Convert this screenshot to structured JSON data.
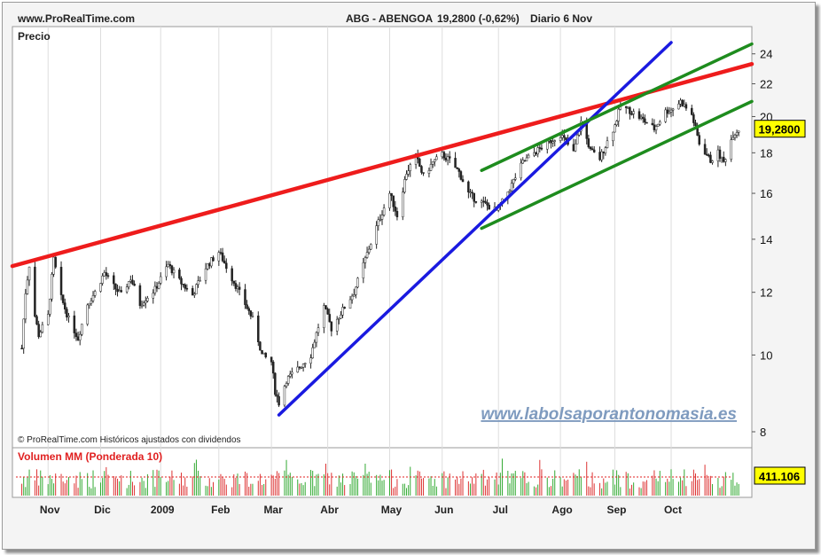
{
  "header": {
    "site": "www.ProRealTime.com",
    "ticker": "ABG - ABENGOA",
    "quote": "19,2800 (-0,62%)",
    "period": "Diario  6 Nov"
  },
  "price_panel": {
    "title": "Precio",
    "copyright": "© ProRealTime.com  Históricos ajustados con dividendos",
    "watermark": "www.labolsaporantonomasia.es",
    "last_price_label": "19,2800"
  },
  "volume_panel": {
    "title": "Volumen MM (Ponderada 10)",
    "last_volume_label": "411.106"
  },
  "colors": {
    "background": "#ffffff",
    "frame": "#f4f4f4",
    "resistance": "#ee1c1c",
    "support": "#1a1ae0",
    "channel": "#1e8c1e",
    "candles": "#222222",
    "volume_up": "#33aa33",
    "volume_down": "#dd3333",
    "price_badge": "#ffff00",
    "watermark": "#7f9bbf"
  },
  "chart_data": [
    {
      "type": "line",
      "panel": "price",
      "y_scale": "log",
      "ylim": [
        8,
        24.8
      ],
      "y_ticks": [
        8,
        10,
        12,
        14,
        16,
        18,
        20,
        22,
        24
      ],
      "y_tick_labels": [
        "8",
        "10",
        "12",
        "14",
        "16",
        "18",
        "20",
        "22",
        "24"
      ],
      "x_labels": [
        "Nov",
        "Dic",
        "2009",
        "Feb",
        "Mar",
        "Abr",
        "May",
        "Jun",
        "Jul",
        "Ago",
        "Sep",
        "Oct"
      ],
      "x_range": [
        "2008-10-15",
        "2009-11-13"
      ],
      "x_label_dates": [
        "2008-11-03",
        "2008-12-01",
        "2009-01-02",
        "2009-02-02",
        "2009-03-02",
        "2009-04-01",
        "2009-05-04",
        "2009-06-01",
        "2009-07-01",
        "2009-08-03",
        "2009-09-01",
        "2009-10-01"
      ],
      "last_value": 19.28,
      "series": [
        {
          "kind": "close",
          "x": [
            "2008-10-20",
            "2008-10-22",
            "2008-10-24",
            "2008-10-27",
            "2008-10-29",
            "2008-11-03",
            "2008-11-06",
            "2008-11-10",
            "2008-11-14",
            "2008-11-19",
            "2008-11-24",
            "2008-11-28",
            "2008-12-03",
            "2008-12-08",
            "2008-12-12",
            "2008-12-17",
            "2008-12-22",
            "2008-12-30",
            "2009-01-06",
            "2009-01-12",
            "2009-01-19",
            "2009-01-26",
            "2009-02-02",
            "2009-02-09",
            "2009-02-16",
            "2009-02-20",
            "2009-02-25",
            "2009-03-02",
            "2009-03-04",
            "2009-03-06",
            "2009-03-10",
            "2009-03-16",
            "2009-03-23",
            "2009-03-30",
            "2009-04-03",
            "2009-04-08",
            "2009-04-15",
            "2009-04-20",
            "2009-04-27",
            "2009-05-04",
            "2009-05-08",
            "2009-05-13",
            "2009-05-18",
            "2009-05-22",
            "2009-05-27",
            "2009-06-01",
            "2009-06-05",
            "2009-06-10",
            "2009-06-15",
            "2009-06-19",
            "2009-06-24",
            "2009-06-30",
            "2009-07-03",
            "2009-07-08",
            "2009-07-14",
            "2009-07-20",
            "2009-07-27",
            "2009-08-03",
            "2009-08-10",
            "2009-08-14",
            "2009-08-19",
            "2009-08-24",
            "2009-08-28",
            "2009-09-01",
            "2009-09-04",
            "2009-09-10",
            "2009-09-16",
            "2009-09-22",
            "2009-09-28",
            "2009-10-01",
            "2009-10-06",
            "2009-10-12",
            "2009-10-16",
            "2009-10-22",
            "2009-10-26",
            "2009-10-29",
            "2009-11-03",
            "2009-11-06"
          ],
          "y": [
            10.2,
            12.0,
            13.0,
            11.2,
            10.6,
            11.2,
            13.2,
            11.8,
            11.1,
            10.5,
            11.6,
            12.0,
            12.7,
            12.2,
            11.9,
            12.5,
            11.6,
            12.1,
            13.0,
            12.4,
            11.9,
            12.9,
            13.5,
            12.5,
            11.6,
            11.1,
            10.0,
            9.8,
            9.0,
            8.7,
            9.3,
            9.6,
            10.0,
            11.5,
            10.8,
            11.3,
            12.0,
            13.0,
            14.5,
            16.0,
            15.0,
            17.0,
            17.8,
            16.8,
            17.5,
            17.9,
            17.6,
            17.0,
            16.0,
            15.7,
            15.5,
            15.2,
            15.6,
            16.4,
            17.5,
            18.0,
            18.5,
            19.0,
            18.0,
            19.7,
            18.1,
            17.7,
            18.6,
            19.5,
            20.6,
            20.3,
            19.8,
            19.3,
            20.3,
            20.4,
            20.9,
            20.1,
            18.5,
            17.6,
            18.0,
            17.5,
            19.0,
            19.28
          ]
        },
        {
          "name": "",
          "kind": "trendline",
          "x": [
            "2008-10-15",
            "2009-11-13"
          ],
          "y": [
            12.95,
            23.3
          ]
        },
        {
          "name": "",
          "kind": "trendline",
          "x": [
            "2009-03-06",
            "2009-10-01"
          ],
          "y": [
            8.4,
            24.8
          ]
        },
        {
          "name": "",
          "kind": "trendline",
          "x": [
            "2009-06-22",
            "2009-11-13"
          ],
          "y": [
            17.1,
            24.7
          ]
        },
        {
          "name": "",
          "kind": "trendline",
          "x": [
            "2009-06-22",
            "2009-11-13"
          ],
          "y": [
            14.45,
            20.9
          ]
        }
      ]
    },
    {
      "type": "bar",
      "panel": "volume",
      "title": "Volumen MM (Ponderada 10)",
      "last_value": 411106,
      "values": []
    }
  ]
}
